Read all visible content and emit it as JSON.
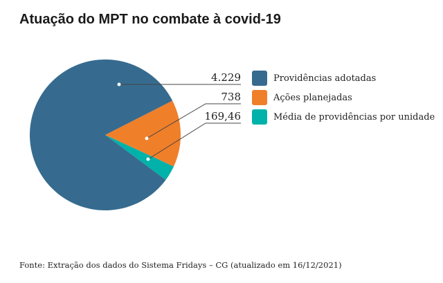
{
  "chart_data": {
    "type": "pie",
    "title": "Atuação do MPT no combate à covid-19",
    "categories": [
      "Providências adotadas",
      "Ações planejadas",
      "Média de providências por unidade"
    ],
    "values": [
      4229,
      738,
      169.46
    ],
    "value_labels": [
      "4.229",
      "738",
      "169,46"
    ],
    "colors": [
      "#366b8f",
      "#f07f2a",
      "#00b2a9"
    ],
    "legend_position": "right"
  },
  "footer": "Fonte: Extração dos dados do Sistema Fridays – CG (atualizado em 16/12/2021)"
}
